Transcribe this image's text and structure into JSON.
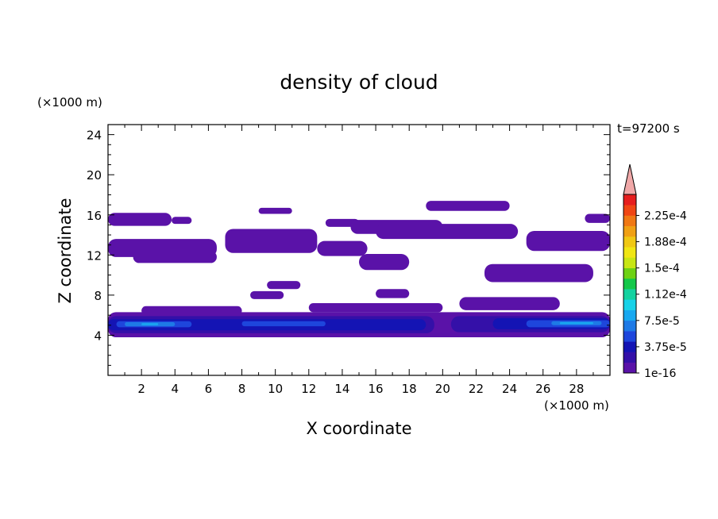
{
  "chart_data": {
    "type": "heatmap",
    "title": "density of cloud",
    "time_label": "t=97200 s",
    "xlabel": "X coordinate",
    "ylabel": "Z coordinate",
    "x_unit": "(×1000 m)",
    "y_unit": "(×1000 m)",
    "xlim": [
      0,
      30
    ],
    "ylim": [
      0,
      25
    ],
    "x_ticks": [
      "2",
      "4",
      "6",
      "8",
      "10",
      "12",
      "14",
      "16",
      "18",
      "20",
      "22",
      "24",
      "26",
      "28"
    ],
    "y_ticks": [
      "4",
      "8",
      "12",
      "16",
      "20",
      "24"
    ],
    "colorbar": {
      "labels": [
        "1e-16",
        "3.75e-5",
        "7.5e-5",
        "1.12e-4",
        "1.5e-4",
        "1.88e-4",
        "2.25e-4"
      ],
      "colors": [
        "#5a12a8",
        "#3410a8",
        "#1414b4",
        "#1e46dc",
        "#1e7ae6",
        "#18a8f0",
        "#18d2e8",
        "#14d2a0",
        "#14c84a",
        "#6ed214",
        "#c8e614",
        "#f0e614",
        "#f0c814",
        "#f0a014",
        "#f07814",
        "#f04614",
        "#e61e1e"
      ],
      "over_color": "#f0a8a8"
    },
    "regions": [
      {
        "level": 0,
        "x": [
          0,
          3.8
        ],
        "z": [
          14.9,
          16.2
        ]
      },
      {
        "level": 0,
        "x": [
          3.8,
          5
        ],
        "z": [
          15.1,
          15.8
        ]
      },
      {
        "level": 0,
        "x": [
          0,
          6.5
        ],
        "z": [
          11.8,
          13.6
        ]
      },
      {
        "level": 0,
        "x": [
          1.5,
          6.5
        ],
        "z": [
          11.2,
          12.4
        ]
      },
      {
        "level": 0,
        "x": [
          7,
          12.5
        ],
        "z": [
          12.2,
          14.6
        ]
      },
      {
        "level": 0,
        "x": [
          9,
          11
        ],
        "z": [
          16.1,
          16.7
        ]
      },
      {
        "level": 0,
        "x": [
          12.5,
          15.5
        ],
        "z": [
          11.9,
          13.4
        ]
      },
      {
        "level": 0,
        "x": [
          15,
          18
        ],
        "z": [
          10.5,
          12.1
        ]
      },
      {
        "level": 0,
        "x": [
          13,
          15
        ],
        "z": [
          14.8,
          15.6
        ]
      },
      {
        "level": 0,
        "x": [
          14.5,
          20
        ],
        "z": [
          14.1,
          15.5
        ]
      },
      {
        "level": 0,
        "x": [
          16,
          24.5
        ],
        "z": [
          13.6,
          15.1
        ]
      },
      {
        "level": 0,
        "x": [
          19,
          24
        ],
        "z": [
          16.4,
          17.4
        ]
      },
      {
        "level": 0,
        "x": [
          25,
          30
        ],
        "z": [
          12.4,
          14.4
        ]
      },
      {
        "level": 0,
        "x": [
          28.5,
          30
        ],
        "z": [
          15.2,
          16.1
        ]
      },
      {
        "level": 0,
        "x": [
          22.5,
          29
        ],
        "z": [
          9.3,
          11.1
        ]
      },
      {
        "level": 0,
        "x": [
          9.5,
          11.5
        ],
        "z": [
          8.6,
          9.4
        ]
      },
      {
        "level": 0,
        "x": [
          8.5,
          10.5
        ],
        "z": [
          7.6,
          8.4
        ]
      },
      {
        "level": 0,
        "x": [
          16,
          18
        ],
        "z": [
          7.7,
          8.6
        ]
      },
      {
        "level": 0,
        "x": [
          2,
          8
        ],
        "z": [
          6.0,
          6.9
        ]
      },
      {
        "level": 0,
        "x": [
          12,
          20
        ],
        "z": [
          6.3,
          7.2
        ]
      },
      {
        "level": 0,
        "x": [
          21,
          27
        ],
        "z": [
          6.5,
          7.8
        ]
      },
      {
        "level": 0,
        "x": [
          0,
          30
        ],
        "z": [
          3.8,
          6.3
        ]
      },
      {
        "level": 1,
        "x": [
          0,
          19.5
        ],
        "z": [
          4.2,
          5.9
        ]
      },
      {
        "level": 1,
        "x": [
          20.5,
          30
        ],
        "z": [
          4.3,
          5.9
        ]
      },
      {
        "level": 2,
        "x": [
          0,
          19
        ],
        "z": [
          4.5,
          5.6
        ]
      },
      {
        "level": 2,
        "x": [
          23,
          30
        ],
        "z": [
          4.6,
          5.7
        ]
      },
      {
        "level": 3,
        "x": [
          0.5,
          5
        ],
        "z": [
          4.8,
          5.4
        ]
      },
      {
        "level": 3,
        "x": [
          8,
          13
        ],
        "z": [
          4.9,
          5.4
        ]
      },
      {
        "level": 3,
        "x": [
          25,
          30
        ],
        "z": [
          4.8,
          5.5
        ]
      },
      {
        "level": 4,
        "x": [
          1,
          4
        ],
        "z": [
          4.9,
          5.3
        ]
      },
      {
        "level": 4,
        "x": [
          26.5,
          29.5
        ],
        "z": [
          5.0,
          5.4
        ]
      },
      {
        "level": 5,
        "x": [
          27,
          29
        ],
        "z": [
          5.1,
          5.3
        ]
      },
      {
        "level": 5,
        "x": [
          2,
          3
        ],
        "z": [
          5.0,
          5.2
        ]
      }
    ]
  }
}
